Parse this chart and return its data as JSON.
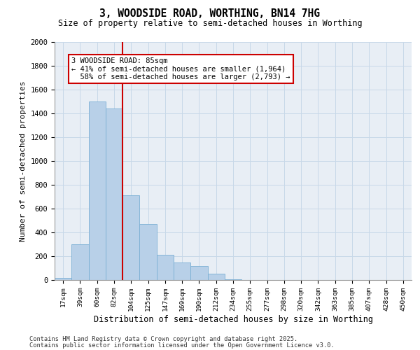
{
  "title_line1": "3, WOODSIDE ROAD, WORTHING, BN14 7HG",
  "title_line2": "Size of property relative to semi-detached houses in Worthing",
  "xlabel": "Distribution of semi-detached houses by size in Worthing",
  "ylabel": "Number of semi-detached properties",
  "bar_color": "#b8d0e8",
  "bar_edge_color": "#7aafd4",
  "categories": [
    "17sqm",
    "39sqm",
    "60sqm",
    "82sqm",
    "104sqm",
    "125sqm",
    "147sqm",
    "169sqm",
    "190sqm",
    "212sqm",
    "234sqm",
    "255sqm",
    "277sqm",
    "298sqm",
    "320sqm",
    "342sqm",
    "363sqm",
    "385sqm",
    "407sqm",
    "428sqm",
    "450sqm"
  ],
  "values": [
    15,
    300,
    1500,
    1440,
    710,
    470,
    210,
    145,
    115,
    55,
    5,
    0,
    0,
    0,
    0,
    0,
    0,
    0,
    0,
    0,
    0
  ],
  "ylim": [
    0,
    2000
  ],
  "yticks": [
    0,
    200,
    400,
    600,
    800,
    1000,
    1200,
    1400,
    1600,
    1800,
    2000
  ],
  "property_label": "3 WOODSIDE ROAD: 85sqm",
  "pct_smaller": 41,
  "pct_larger": 58,
  "n_smaller": 1964,
  "n_larger": 2793,
  "vline_x_index": 3.5,
  "annotation_box_color": "#cc0000",
  "grid_color": "#c8d8e8",
  "background_color": "#e8eef5",
  "footer1": "Contains HM Land Registry data © Crown copyright and database right 2025.",
  "footer2": "Contains public sector information licensed under the Open Government Licence v3.0."
}
